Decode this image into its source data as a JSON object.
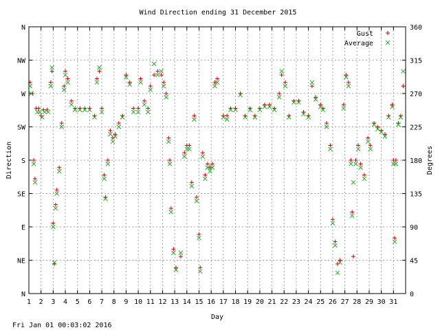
{
  "chart_data": {
    "type": "scatter",
    "title": "Wind Direction ending 31 December 2015",
    "xlabel": "Day",
    "ylabel": "Direction",
    "y2label": "Degrees",
    "timestamp": "Fri Jan 01 00:03:02 2016",
    "xlim": [
      1,
      32
    ],
    "ylim": [
      0,
      360
    ],
    "x_ticks": [
      "1",
      "2",
      "3",
      "4",
      "5",
      "6",
      "7",
      "8",
      "9",
      "10",
      "11",
      "12",
      "13",
      "14",
      "15",
      "16",
      "17",
      "18",
      "19",
      "20",
      "21",
      "22",
      "23",
      "24",
      "25",
      "26",
      "27",
      "28",
      "29",
      "30",
      "31"
    ],
    "y_left_ticks": [
      {
        "value": 0,
        "label": "N"
      },
      {
        "value": 45,
        "label": "NE"
      },
      {
        "value": 90,
        "label": "E"
      },
      {
        "value": 135,
        "label": "SE"
      },
      {
        "value": 180,
        "label": "S"
      },
      {
        "value": 225,
        "label": "SW"
      },
      {
        "value": 270,
        "label": "W"
      },
      {
        "value": 315,
        "label": "NW"
      },
      {
        "value": 360,
        "label": "N"
      }
    ],
    "y_right_ticks": [
      {
        "value": 0,
        "label": "0"
      },
      {
        "value": 45,
        "label": "45"
      },
      {
        "value": 90,
        "label": "90"
      },
      {
        "value": 135,
        "label": "135"
      },
      {
        "value": 180,
        "label": "180"
      },
      {
        "value": 225,
        "label": "225"
      },
      {
        "value": 270,
        "label": "270"
      },
      {
        "value": 315,
        "label": "315"
      },
      {
        "value": 360,
        "label": "360"
      }
    ],
    "grid": true,
    "legend_position": "top-right",
    "series": [
      {
        "name": "Gust",
        "marker": "plus",
        "color": "#cc0000",
        "points": [
          [
            1.1,
            285
          ],
          [
            1.3,
            270
          ],
          [
            1.4,
            180
          ],
          [
            1.5,
            155
          ],
          [
            1.6,
            250
          ],
          [
            1.8,
            250
          ],
          [
            2.0,
            240
          ],
          [
            2.2,
            248
          ],
          [
            2.5,
            248
          ],
          [
            2.8,
            285
          ],
          [
            2.9,
            300
          ],
          [
            3.0,
            95
          ],
          [
            3.1,
            40
          ],
          [
            3.2,
            120
          ],
          [
            3.3,
            140
          ],
          [
            3.5,
            170
          ],
          [
            3.7,
            230
          ],
          [
            3.9,
            280
          ],
          [
            4.0,
            300
          ],
          [
            4.2,
            290
          ],
          [
            4.5,
            260
          ],
          [
            4.8,
            250
          ],
          [
            5.2,
            250
          ],
          [
            5.6,
            250
          ],
          [
            6.0,
            250
          ],
          [
            6.4,
            240
          ],
          [
            6.6,
            290
          ],
          [
            6.8,
            300
          ],
          [
            7.0,
            250
          ],
          [
            7.2,
            160
          ],
          [
            7.3,
            130
          ],
          [
            7.5,
            180
          ],
          [
            7.7,
            220
          ],
          [
            7.9,
            210
          ],
          [
            8.1,
            215
          ],
          [
            8.4,
            230
          ],
          [
            8.7,
            240
          ],
          [
            9.0,
            295
          ],
          [
            9.3,
            285
          ],
          [
            9.6,
            250
          ],
          [
            10.0,
            250
          ],
          [
            10.2,
            290
          ],
          [
            10.5,
            260
          ],
          [
            10.8,
            250
          ],
          [
            11.0,
            280
          ],
          [
            11.3,
            295
          ],
          [
            11.6,
            300
          ],
          [
            11.9,
            295
          ],
          [
            12.1,
            285
          ],
          [
            12.3,
            270
          ],
          [
            12.5,
            210
          ],
          [
            12.6,
            180
          ],
          [
            12.7,
            115
          ],
          [
            12.9,
            60
          ],
          [
            13.1,
            35
          ],
          [
            13.5,
            50
          ],
          [
            13.8,
            190
          ],
          [
            14.0,
            200
          ],
          [
            14.2,
            200
          ],
          [
            14.4,
            150
          ],
          [
            14.6,
            240
          ],
          [
            14.8,
            130
          ],
          [
            15.0,
            80
          ],
          [
            15.1,
            35
          ],
          [
            15.3,
            190
          ],
          [
            15.5,
            160
          ],
          [
            15.7,
            175
          ],
          [
            15.9,
            170
          ],
          [
            16.1,
            175
          ],
          [
            16.3,
            285
          ],
          [
            16.5,
            290
          ],
          [
            17.0,
            240
          ],
          [
            17.3,
            240
          ],
          [
            17.6,
            250
          ],
          [
            18.0,
            250
          ],
          [
            18.4,
            270
          ],
          [
            18.8,
            240
          ],
          [
            19.2,
            250
          ],
          [
            19.6,
            240
          ],
          [
            20.0,
            250
          ],
          [
            20.4,
            255
          ],
          [
            20.8,
            255
          ],
          [
            21.2,
            250
          ],
          [
            21.6,
            270
          ],
          [
            21.8,
            295
          ],
          [
            22.1,
            285
          ],
          [
            22.4,
            240
          ],
          [
            22.8,
            260
          ],
          [
            23.2,
            260
          ],
          [
            23.6,
            245
          ],
          [
            24.0,
            240
          ],
          [
            24.3,
            280
          ],
          [
            24.6,
            265
          ],
          [
            25.0,
            255
          ],
          [
            25.2,
            250
          ],
          [
            25.5,
            230
          ],
          [
            25.8,
            200
          ],
          [
            26.0,
            100
          ],
          [
            26.2,
            70
          ],
          [
            26.4,
            40
          ],
          [
            26.6,
            45
          ],
          [
            26.9,
            255
          ],
          [
            27.1,
            295
          ],
          [
            27.3,
            285
          ],
          [
            27.5,
            180
          ],
          [
            27.6,
            110
          ],
          [
            27.7,
            50
          ],
          [
            27.9,
            180
          ],
          [
            28.1,
            200
          ],
          [
            28.3,
            175
          ],
          [
            28.6,
            160
          ],
          [
            28.9,
            210
          ],
          [
            29.1,
            200
          ],
          [
            29.4,
            230
          ],
          [
            29.7,
            225
          ],
          [
            30.0,
            220
          ],
          [
            30.3,
            215
          ],
          [
            30.6,
            240
          ],
          [
            30.9,
            255
          ],
          [
            31.0,
            180
          ],
          [
            31.1,
            75
          ],
          [
            31.2,
            180
          ],
          [
            31.4,
            230
          ],
          [
            31.6,
            240
          ],
          [
            31.8,
            280
          ]
        ]
      },
      {
        "name": "Average",
        "marker": "cross",
        "color": "#22aa22",
        "points": [
          [
            1.1,
            280
          ],
          [
            1.2,
            270
          ],
          [
            1.4,
            175
          ],
          [
            1.5,
            150
          ],
          [
            1.7,
            245
          ],
          [
            1.9,
            245
          ],
          [
            2.1,
            238
          ],
          [
            2.3,
            245
          ],
          [
            2.6,
            245
          ],
          [
            2.8,
            280
          ],
          [
            2.9,
            305
          ],
          [
            3.0,
            90
          ],
          [
            3.1,
            42
          ],
          [
            3.2,
            115
          ],
          [
            3.3,
            135
          ],
          [
            3.5,
            165
          ],
          [
            3.7,
            225
          ],
          [
            3.9,
            275
          ],
          [
            4.0,
            295
          ],
          [
            4.2,
            285
          ],
          [
            4.5,
            255
          ],
          [
            4.8,
            248
          ],
          [
            5.2,
            248
          ],
          [
            5.6,
            248
          ],
          [
            6.0,
            248
          ],
          [
            6.4,
            238
          ],
          [
            6.6,
            285
          ],
          [
            6.8,
            305
          ],
          [
            7.0,
            245
          ],
          [
            7.2,
            155
          ],
          [
            7.3,
            128
          ],
          [
            7.5,
            175
          ],
          [
            7.7,
            215
          ],
          [
            7.9,
            205
          ],
          [
            8.1,
            212
          ],
          [
            8.4,
            225
          ],
          [
            8.7,
            238
          ],
          [
            9.0,
            292
          ],
          [
            9.3,
            282
          ],
          [
            9.6,
            245
          ],
          [
            10.0,
            245
          ],
          [
            10.2,
            285
          ],
          [
            10.5,
            255
          ],
          [
            10.8,
            245
          ],
          [
            11.0,
            275
          ],
          [
            11.3,
            310
          ],
          [
            11.6,
            295
          ],
          [
            11.9,
            300
          ],
          [
            12.1,
            280
          ],
          [
            12.3,
            265
          ],
          [
            12.5,
            205
          ],
          [
            12.6,
            175
          ],
          [
            12.7,
            110
          ],
          [
            12.9,
            55
          ],
          [
            13.1,
            32
          ],
          [
            13.5,
            55
          ],
          [
            13.8,
            185
          ],
          [
            14.0,
            195
          ],
          [
            14.2,
            195
          ],
          [
            14.4,
            145
          ],
          [
            14.6,
            235
          ],
          [
            14.8,
            125
          ],
          [
            15.0,
            75
          ],
          [
            15.1,
            30
          ],
          [
            15.3,
            185
          ],
          [
            15.5,
            155
          ],
          [
            15.7,
            170
          ],
          [
            15.9,
            165
          ],
          [
            16.1,
            170
          ],
          [
            16.3,
            280
          ],
          [
            16.5,
            285
          ],
          [
            17.0,
            238
          ],
          [
            17.3,
            235
          ],
          [
            17.6,
            248
          ],
          [
            18.0,
            248
          ],
          [
            18.4,
            268
          ],
          [
            18.8,
            238
          ],
          [
            19.2,
            248
          ],
          [
            19.6,
            238
          ],
          [
            20.0,
            248
          ],
          [
            20.4,
            252
          ],
          [
            20.8,
            252
          ],
          [
            21.2,
            248
          ],
          [
            21.6,
            265
          ],
          [
            21.8,
            300
          ],
          [
            22.1,
            280
          ],
          [
            22.4,
            238
          ],
          [
            22.8,
            258
          ],
          [
            23.2,
            258
          ],
          [
            23.6,
            242
          ],
          [
            24.0,
            238
          ],
          [
            24.3,
            285
          ],
          [
            24.6,
            262
          ],
          [
            25.0,
            252
          ],
          [
            25.2,
            248
          ],
          [
            25.5,
            225
          ],
          [
            25.8,
            195
          ],
          [
            26.0,
            95
          ],
          [
            26.2,
            65
          ],
          [
            26.4,
            28
          ],
          [
            26.6,
            42
          ],
          [
            26.9,
            250
          ],
          [
            27.1,
            292
          ],
          [
            27.3,
            280
          ],
          [
            27.5,
            175
          ],
          [
            27.6,
            105
          ],
          [
            27.7,
            150
          ],
          [
            27.9,
            175
          ],
          [
            28.1,
            195
          ],
          [
            28.3,
            170
          ],
          [
            28.6,
            155
          ],
          [
            28.9,
            205
          ],
          [
            29.1,
            195
          ],
          [
            29.4,
            228
          ],
          [
            29.7,
            222
          ],
          [
            30.0,
            218
          ],
          [
            30.3,
            212
          ],
          [
            30.6,
            238
          ],
          [
            30.9,
            252
          ],
          [
            31.0,
            175
          ],
          [
            31.1,
            70
          ],
          [
            31.2,
            175
          ],
          [
            31.4,
            228
          ],
          [
            31.6,
            238
          ],
          [
            31.8,
            300
          ]
        ]
      }
    ]
  }
}
